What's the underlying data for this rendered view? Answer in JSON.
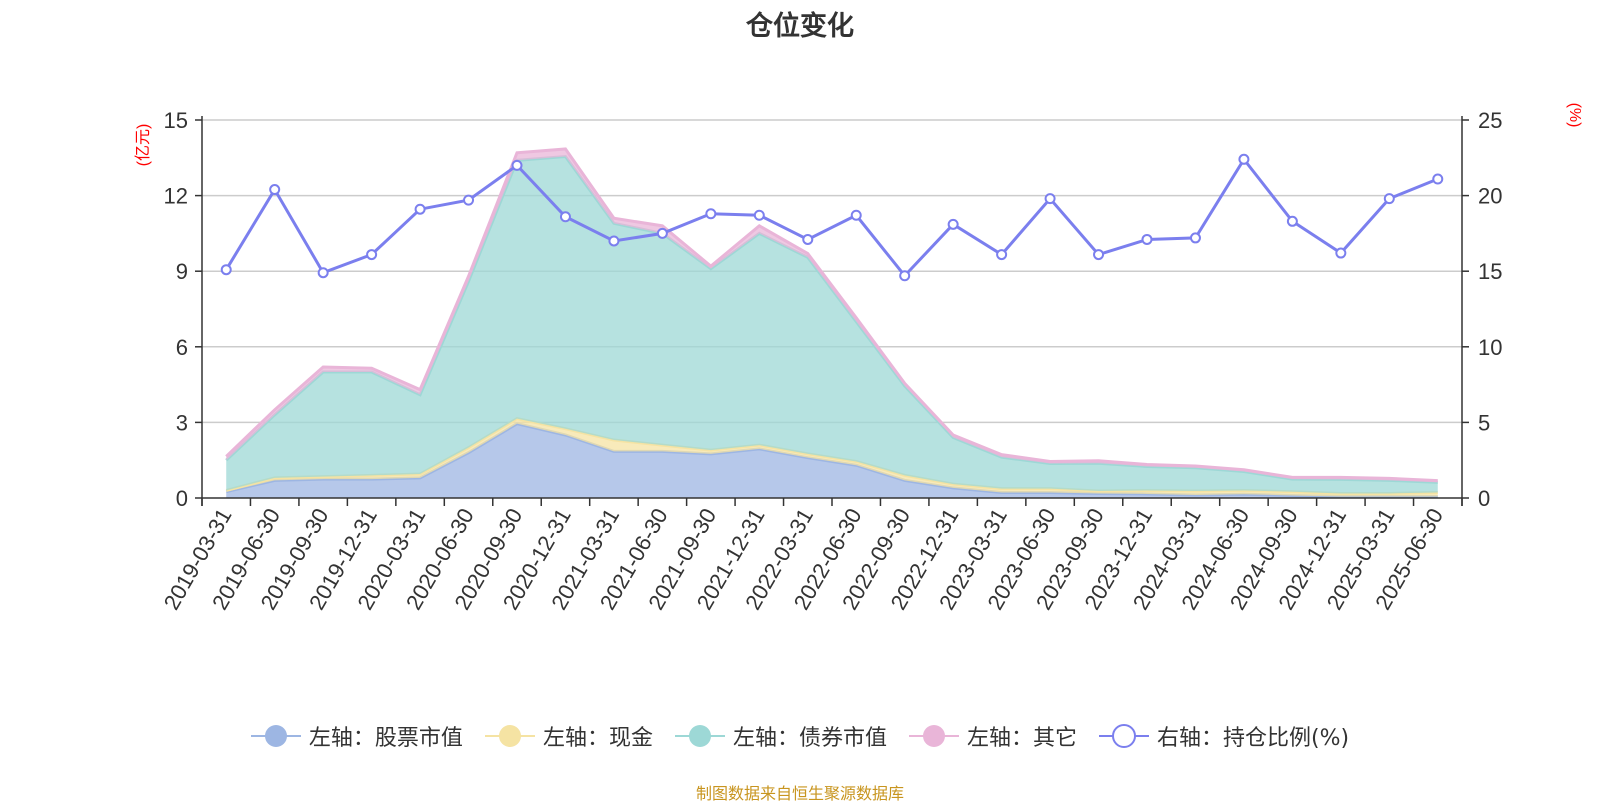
{
  "chart_data": {
    "type": "area",
    "title": "仓位变化",
    "left_axis": {
      "unit_label": "(亿元)",
      "range": [
        0,
        15
      ],
      "ticks": [
        "0",
        "3",
        "6",
        "9",
        "12",
        "15"
      ]
    },
    "right_axis": {
      "unit_label": "(%)",
      "range": [
        0,
        25
      ],
      "ticks": [
        "0",
        "5",
        "10",
        "15",
        "20",
        "25"
      ]
    },
    "categories": [
      "2019-03-31",
      "2019-06-30",
      "2019-09-30",
      "2019-12-31",
      "2020-03-31",
      "2020-06-30",
      "2020-09-30",
      "2020-12-31",
      "2021-03-31",
      "2021-06-30",
      "2021-09-30",
      "2021-12-31",
      "2022-03-31",
      "2022-06-30",
      "2022-09-30",
      "2022-12-31",
      "2023-03-31",
      "2023-06-30",
      "2023-09-30",
      "2023-12-31",
      "2024-03-31",
      "2024-06-30",
      "2024-09-30",
      "2024-12-31",
      "2025-03-31",
      "2025-06-30"
    ],
    "series": [
      {
        "name": "左轴：股票市值",
        "axis": "left",
        "stacked": true,
        "color": "#9db6e3",
        "values": [
          0.25,
          0.7,
          0.75,
          0.75,
          0.8,
          1.8,
          2.95,
          2.5,
          1.85,
          1.85,
          1.75,
          1.95,
          1.6,
          1.3,
          0.7,
          0.4,
          0.22,
          0.22,
          0.18,
          0.16,
          0.12,
          0.15,
          0.1,
          0.06,
          0.06,
          0.06
        ]
      },
      {
        "name": "左轴：现金",
        "axis": "left",
        "stacked": true,
        "color": "#f5e3a3",
        "values": [
          0.05,
          0.1,
          0.1,
          0.15,
          0.15,
          0.2,
          0.2,
          0.25,
          0.45,
          0.25,
          0.15,
          0.15,
          0.15,
          0.15,
          0.2,
          0.15,
          0.15,
          0.15,
          0.1,
          0.14,
          0.16,
          0.15,
          0.15,
          0.12,
          0.12,
          0.16
        ]
      },
      {
        "name": "左轴：债券市值",
        "axis": "left",
        "stacked": true,
        "color": "#9dd8d6",
        "values": [
          1.2,
          2.5,
          4.15,
          4.1,
          3.15,
          6.6,
          10.25,
          10.8,
          8.6,
          8.4,
          7.2,
          8.4,
          7.8,
          5.55,
          3.55,
          1.85,
          1.25,
          1.0,
          1.1,
          0.95,
          0.92,
          0.75,
          0.5,
          0.56,
          0.52,
          0.4
        ]
      },
      {
        "name": "左轴：其它",
        "axis": "left",
        "stacked": true,
        "color": "#e9b5d8",
        "values": [
          0.15,
          0.2,
          0.2,
          0.15,
          0.2,
          0.2,
          0.3,
          0.3,
          0.2,
          0.3,
          0.1,
          0.3,
          0.15,
          0.15,
          0.1,
          0.1,
          0.1,
          0.08,
          0.1,
          0.08,
          0.07,
          0.07,
          0.07,
          0.08,
          0.08,
          0.07
        ]
      },
      {
        "name": "右轴：持仓比例(%)",
        "axis": "right",
        "type": "line",
        "color": "#7b7fee",
        "values": [
          15.1,
          20.4,
          14.9,
          16.1,
          19.1,
          19.7,
          22.0,
          18.6,
          17.0,
          17.5,
          18.8,
          18.7,
          17.1,
          18.7,
          14.7,
          18.1,
          16.1,
          19.8,
          16.1,
          17.1,
          17.2,
          22.4,
          18.3,
          16.2,
          19.8,
          21.1
        ]
      }
    ],
    "grid": true,
    "legend_position": "bottom"
  },
  "footer": "制图数据来自恒生聚源数据库"
}
